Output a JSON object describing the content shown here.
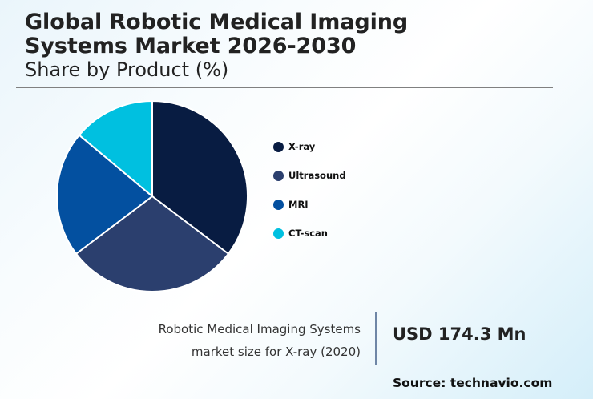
{
  "header": {
    "title_line1": "Global Robotic Medical Imaging",
    "title_line2": "Systems Market 2026-2030",
    "subtitle": "Share by Product (%)"
  },
  "chart_data": {
    "type": "pie",
    "title": "Global Robotic Medical Imaging Systems Market 2026-2030",
    "subtitle": "Share by Product (%)",
    "categories": [
      "X-ray",
      "Ultrasound",
      "MRI",
      "CT-scan"
    ],
    "values": [
      35.3,
      29.4,
      21.4,
      13.9
    ],
    "colors": [
      "#081c42",
      "#2b3f6e",
      "#0350a0",
      "#00c0e0"
    ],
    "start_angle": "12 o'clock, clockwise",
    "legend_position": "right",
    "data_labels": false
  },
  "legend": {
    "items": [
      {
        "label": "X-ray",
        "color": "#081c42"
      },
      {
        "label": "Ultrasound",
        "color": "#2b3f6e"
      },
      {
        "label": "MRI",
        "color": "#0350a0"
      },
      {
        "label": "CT-scan",
        "color": "#00c0e0"
      }
    ]
  },
  "stat": {
    "label_line1": "Robotic Medical Imaging Systems",
    "label_line2": "market size for X-ray (2020)",
    "value": "USD 174.3 Mn"
  },
  "footer": {
    "source": "Source: technavio.com"
  }
}
